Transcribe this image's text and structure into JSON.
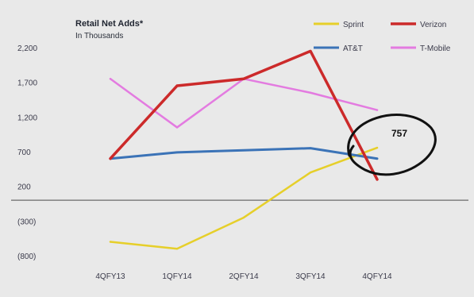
{
  "chart_data": {
    "type": "line",
    "title": "Retail Net Adds*",
    "subtitle": "In Thousands",
    "categories": [
      "4QFY13",
      "1QFY14",
      "2QFY14",
      "3QFY14",
      "4QFY14"
    ],
    "y_ticks": [
      {
        "value": 2200,
        "label": "2,200"
      },
      {
        "value": 1700,
        "label": "1,700"
      },
      {
        "value": 1200,
        "label": "1,200"
      },
      {
        "value": 700,
        "label": "700"
      },
      {
        "value": 200,
        "label": "200"
      },
      {
        "value": -300,
        "label": "(300)"
      },
      {
        "value": -800,
        "label": "(800)"
      }
    ],
    "ylim": [
      -950,
      2450
    ],
    "grid": false,
    "legend_position": "top-right",
    "series": [
      {
        "name": "Sprint",
        "color": "#e6cf2a",
        "values": [
          -600,
          -700,
          -250,
          400,
          757
        ]
      },
      {
        "name": "Verizon",
        "color": "#cc2a2a",
        "values": [
          600,
          1650,
          1750,
          2150,
          300
        ]
      },
      {
        "name": "AT&T",
        "color": "#3b73b7",
        "values": [
          600,
          690,
          720,
          750,
          600
        ]
      },
      {
        "name": "T-Mobile",
        "color": "#e37be0",
        "values": [
          1750,
          1050,
          1750,
          1550,
          1300
        ]
      }
    ],
    "annotation": {
      "label": "757",
      "series": "Sprint",
      "category": "4QFY14"
    }
  }
}
